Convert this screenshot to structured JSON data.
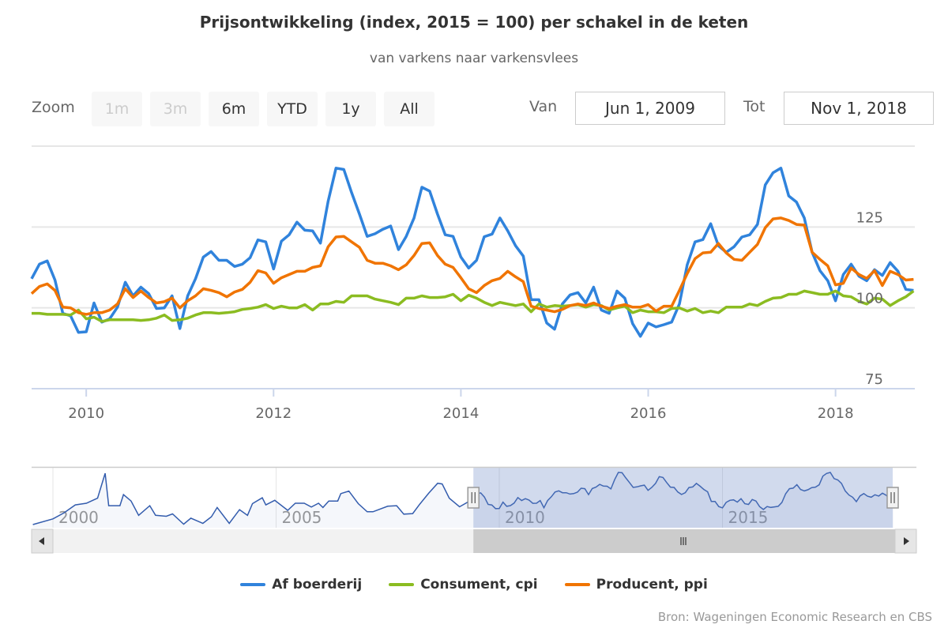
{
  "chart_data": {
    "type": "line",
    "title": "Prijsontwikkeling (index, 2015 = 100) per schakel in de keten",
    "subtitle": "van varkens naar varkensvlees",
    "x_start": "2009-06",
    "x_interval": "month",
    "xlim": [
      "Jun 1, 2009",
      "Nov 1, 2018"
    ],
    "ylim": [
      75,
      150
    ],
    "y_ticks": [
      75,
      100,
      125,
      150
    ],
    "y_tick_labels": [
      "75",
      "100",
      "125"
    ],
    "x_ticks": [
      2010,
      2012,
      2014,
      2016,
      2018
    ],
    "x_tick_labels": [
      "2010",
      "2012",
      "2014",
      "2016",
      "2018"
    ],
    "grid": true,
    "legend_placement": "bottom-center",
    "series": [
      {
        "name": "Af boerderij",
        "color": "#3083dc",
        "values": [
          109,
          113.5,
          114.5,
          108.6,
          98.3,
          97.5,
          92.4,
          92.6,
          101.5,
          95.6,
          96.6,
          100.2,
          107.9,
          103.7,
          106.4,
          104.4,
          99.8,
          100,
          103.7,
          93.6,
          103.7,
          109,
          115.7,
          117.4,
          114.7,
          114.7,
          112.8,
          113.5,
          115.5,
          121,
          120.4,
          112,
          120.6,
          122.6,
          126.5,
          124,
          123.8,
          120,
          133,
          143.2,
          142.8,
          135.6,
          129,
          122.1,
          122.9,
          124.3,
          125.3,
          118,
          122.1,
          127.8,
          137.3,
          136.1,
          129,
          122.6,
          122.1,
          115.7,
          112.3,
          114.7,
          122,
          122.8,
          127.8,
          123.8,
          119.2,
          116,
          102.5,
          102.5,
          95.3,
          93.4,
          101.2,
          104,
          104.7,
          101.5,
          106.4,
          99.3,
          98.3,
          105.2,
          103,
          95.1,
          91.2,
          95.3,
          94.1,
          94.8,
          95.6,
          101.2,
          113.3,
          120.4,
          121.1,
          126,
          119.2,
          117.2,
          118.9,
          121.9,
          122.6,
          125.8,
          138,
          141.8,
          143.2,
          134.6,
          132.7,
          127.8,
          117.2,
          111.5,
          108.4,
          102.2,
          110.3,
          113.5,
          109.8,
          108.4,
          111.8,
          110,
          114,
          111.3,
          105.7,
          105.4
        ]
      },
      {
        "name": "Consument, cpi",
        "color": "#8bbc21",
        "values": [
          98.3,
          98.3,
          98,
          98,
          98,
          97.8,
          99.3,
          96.6,
          97.1,
          95.8,
          96.3,
          96.3,
          96.3,
          96.3,
          96.1,
          96.3,
          96.8,
          97.8,
          96.1,
          96.3,
          96.8,
          97.8,
          98.5,
          98.5,
          98.3,
          98.5,
          98.8,
          99.5,
          99.8,
          100.2,
          101,
          99.8,
          100.5,
          100,
          100,
          101,
          99.3,
          101.2,
          101.2,
          102,
          101.7,
          103.7,
          103.7,
          103.7,
          102.7,
          102.2,
          101.7,
          101,
          103,
          103,
          103.7,
          103.2,
          103.2,
          103.4,
          104.2,
          102.2,
          103.9,
          103,
          101.7,
          100.7,
          101.7,
          101.2,
          100.7,
          101.2,
          98.8,
          101.2,
          100.2,
          100.7,
          100.5,
          100.7,
          101,
          100.2,
          101,
          100.7,
          99.3,
          100,
          100.5,
          98.5,
          99.3,
          98.8,
          98.8,
          98.5,
          99.8,
          100,
          99,
          99.8,
          98.5,
          99,
          98.5,
          100.2,
          100.2,
          100.2,
          101.2,
          100.7,
          102,
          103,
          103.2,
          104.2,
          104.2,
          105.2,
          104.7,
          104.2,
          104.2,
          105.2,
          103.7,
          103.4,
          102,
          101.2,
          103,
          102.7,
          100.7,
          102.2,
          103.4,
          105.2
        ]
      },
      {
        "name": "Producent, ppi",
        "color": "#f07400",
        "values": [
          104.4,
          106.6,
          107.4,
          105.4,
          100.2,
          100,
          98.5,
          98,
          98.5,
          98.5,
          99.3,
          101.2,
          105.9,
          103.2,
          105.2,
          103.2,
          101.5,
          101.9,
          103,
          100,
          102.2,
          103.7,
          105.9,
          105.4,
          104.7,
          103.4,
          104.9,
          105.7,
          107.9,
          111.5,
          110.8,
          107.6,
          109.3,
          110.3,
          111.3,
          111.3,
          112.5,
          113,
          118.9,
          121.9,
          122.1,
          120.4,
          118.7,
          114.7,
          113.8,
          113.8,
          113,
          111.8,
          113.3,
          116.2,
          119.9,
          120.1,
          116.2,
          113.5,
          112.5,
          109.3,
          105.9,
          104.7,
          106.9,
          108.4,
          109.1,
          111.3,
          109.6,
          108.1,
          100.5,
          99.8,
          99.3,
          98.8,
          99.5,
          100.7,
          101.2,
          100.7,
          101.5,
          100.5,
          99.8,
          100.5,
          101,
          100.2,
          100.2,
          101,
          99,
          100.5,
          100.5,
          105.4,
          110.6,
          115.2,
          117,
          117.2,
          119.9,
          117,
          115,
          114.7,
          117.2,
          119.6,
          124.8,
          127.5,
          127.8,
          127,
          125.8,
          125.6,
          117.2,
          115,
          113,
          107.1,
          107.6,
          112.3,
          110.3,
          109.1,
          111.5,
          106.9,
          111.3,
          110.3,
          108.6,
          108.8
        ]
      }
    ],
    "navigator": {
      "series": "Af boerderij",
      "color": "#335cad",
      "range_start_year": 1999.52,
      "range_end_year": 2018.83,
      "selected_from_year": 2009.42,
      "selected_to_year": 2018.83,
      "x_tick_labels": [
        "2000",
        "2005",
        "2010",
        "2015"
      ],
      "x_ticks": [
        2000,
        2005,
        2010,
        2015
      ],
      "history_points": [
        [
          1999.55,
          70
        ],
        [
          2000.0,
          78
        ],
        [
          2000.25,
          86.5
        ],
        [
          2000.5,
          97.6
        ],
        [
          2000.75,
          100
        ],
        [
          2001.0,
          107
        ],
        [
          2001.17,
          142
        ],
        [
          2001.25,
          96.5
        ],
        [
          2001.5,
          96.5
        ],
        [
          2001.58,
          112
        ],
        [
          2001.75,
          103
        ],
        [
          2001.92,
          83
        ],
        [
          2002.17,
          96.5
        ],
        [
          2002.3,
          83
        ],
        [
          2002.54,
          81.7
        ],
        [
          2002.68,
          85
        ],
        [
          2002.93,
          70.5
        ],
        [
          2003.09,
          79
        ],
        [
          2003.36,
          71.7
        ],
        [
          2003.55,
          81
        ],
        [
          2003.68,
          94
        ],
        [
          2003.95,
          71.7
        ],
        [
          2004.18,
          91
        ],
        [
          2004.36,
          83
        ],
        [
          2004.47,
          99.4
        ],
        [
          2004.69,
          107.6
        ],
        [
          2004.77,
          97.6
        ],
        [
          2004.97,
          104
        ],
        [
          2005.26,
          90
        ],
        [
          2005.43,
          100
        ],
        [
          2005.63,
          100
        ],
        [
          2005.79,
          94.6
        ],
        [
          2005.95,
          100
        ],
        [
          2006.05,
          94
        ],
        [
          2006.18,
          103
        ],
        [
          2006.38,
          103
        ],
        [
          2006.45,
          113.5
        ],
        [
          2006.63,
          117
        ],
        [
          2006.84,
          99.4
        ],
        [
          2007.04,
          88
        ],
        [
          2007.17,
          88
        ],
        [
          2007.5,
          95.7
        ],
        [
          2007.7,
          96.5
        ],
        [
          2007.86,
          84.6
        ],
        [
          2008.06,
          85.4
        ],
        [
          2008.22,
          98.7
        ],
        [
          2008.42,
          114
        ],
        [
          2008.62,
          128
        ],
        [
          2008.72,
          127
        ],
        [
          2008.88,
          107
        ],
        [
          2009.11,
          95
        ],
        [
          2009.28,
          101
        ]
      ]
    }
  },
  "range_selector": {
    "zoom_label": "Zoom",
    "buttons": [
      {
        "label": "1m",
        "disabled": true
      },
      {
        "label": "3m",
        "disabled": true
      },
      {
        "label": "6m",
        "disabled": false
      },
      {
        "label": "YTD",
        "disabled": false
      },
      {
        "label": "1y",
        "disabled": false
      },
      {
        "label": "All",
        "disabled": false
      }
    ],
    "from_label": "Van",
    "from_value": "Jun 1, 2009",
    "to_label": "Tot",
    "to_value": "Nov 1, 2018"
  },
  "scrollbar": {
    "left_icon": "arrow-left-icon",
    "right_icon": "arrow-right-icon",
    "grip_icon": "grip-icon"
  },
  "credits": "Bron: Wageningen Economic Research en CBS"
}
